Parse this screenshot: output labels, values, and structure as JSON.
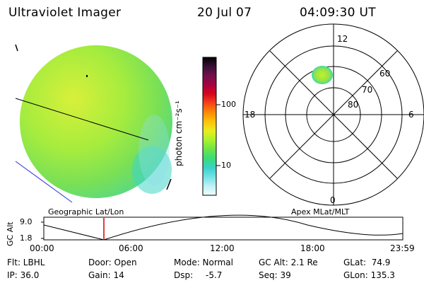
{
  "header": {
    "title": "Ultraviolet Imager",
    "date": "20 Jul 07",
    "time": "04:09:30 UT"
  },
  "colorbar": {
    "label": "photon cm⁻²s⁻¹",
    "ticks": [
      "100",
      "10"
    ],
    "colors": [
      "#000000",
      "#3a0f36",
      "#70104a",
      "#a8003f",
      "#d8071c",
      "#f5451a",
      "#fb8b05",
      "#fdc20a",
      "#e7ee1e",
      "#a9f22c",
      "#6ce548",
      "#3adc78",
      "#39d2c8",
      "#73e3e6",
      "#bef1f4",
      "#f0ffff"
    ]
  },
  "polar": {
    "mlt_labels": [
      "12",
      "18",
      "6",
      "0"
    ],
    "lat_labels": [
      "60",
      "70",
      "80"
    ]
  },
  "timeline": {
    "left_title": "Geographic Lat/Lon",
    "right_title": "Apex MLat/MLT",
    "axis_title": "GC Alt",
    "y_ticks": [
      "9.0",
      "1.8"
    ],
    "x_ticks": [
      "00:00",
      "06:00",
      "12:00",
      "18:00",
      "23:59"
    ],
    "marker_color": "#d00000"
  },
  "status": {
    "flt": "Flt: LBHL",
    "ip": "IP: 36.0",
    "door": "Door: Open",
    "gain": "Gain: 14",
    "mode": "Mode: Normal",
    "dsp_label": "Dsp:",
    "dsp_value": "-5.7",
    "gcalt": "GC Alt: 2.1 Re",
    "seq": "Seq: 39",
    "glat": "GLat:  74.9",
    "glon": "GLon: 135.3"
  }
}
